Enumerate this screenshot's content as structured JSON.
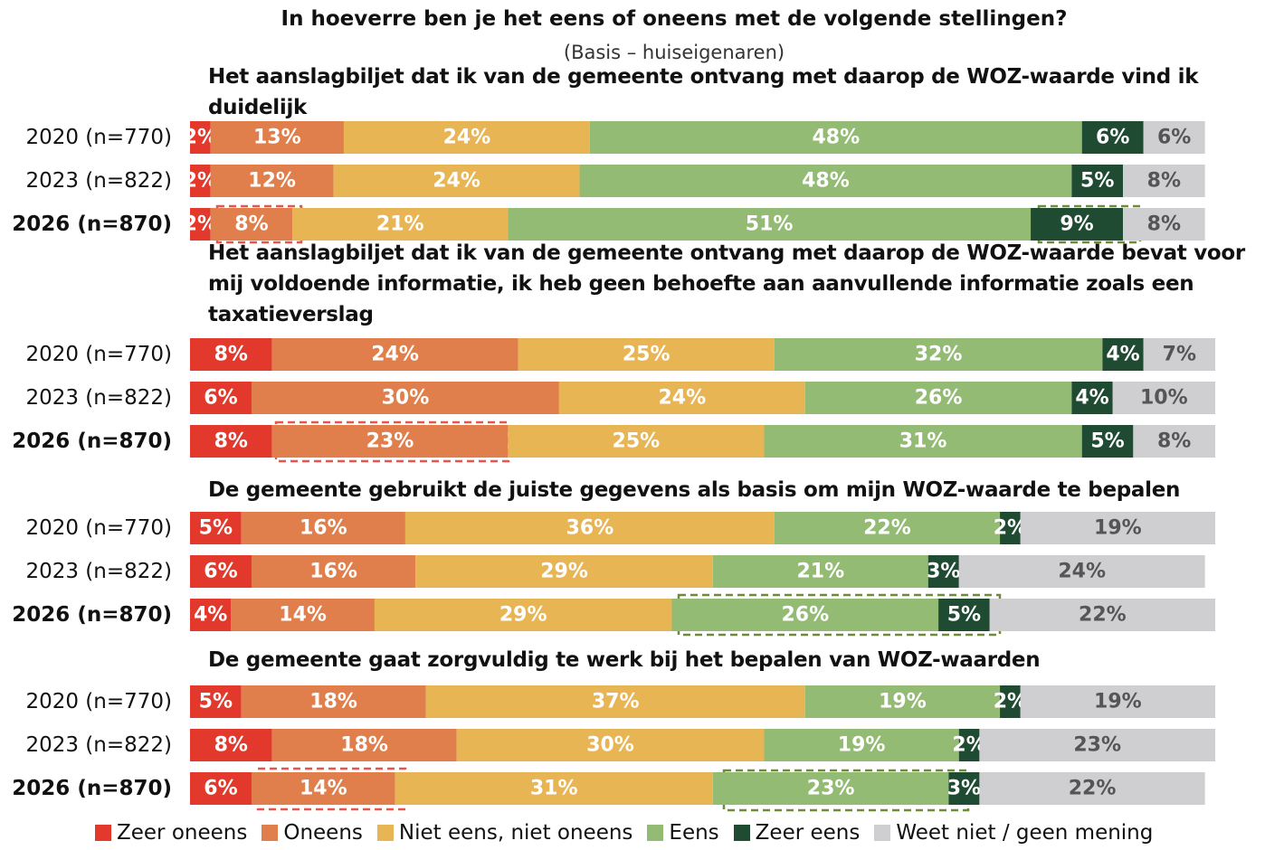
{
  "chart_data": {
    "type": "stacked-bar",
    "title": "In hoeverre ben je het eens of oneens met de volgende stellingen?",
    "subtitle": "(Basis – huiseigenaren)",
    "series": [
      {
        "name": "Zeer oneens",
        "color": "#e3392c"
      },
      {
        "name": "Oneens",
        "color": "#e07f4b"
      },
      {
        "name": "Niet eens, niet oneens",
        "color": "#e8b554"
      },
      {
        "name": "Eens",
        "color": "#93bb74"
      },
      {
        "name": "Zeer eens",
        "color": "#1f4b32"
      },
      {
        "name": "Weet niet / geen mening",
        "color": "#cfcfd2"
      }
    ],
    "panels": [
      {
        "title": "Het aanslagbiljet dat ik van de gemeente ontvang met daarop de WOZ-waarde vind ik duidelijk",
        "categories": [
          "2020 (n=770)",
          "2023 (n=822)",
          "2026 (n=870)"
        ],
        "series": [
          {
            "values": [
              2,
              2,
              2
            ],
            "value_labels": [
              "2%",
              "2%",
              "2%"
            ]
          },
          {
            "values": [
              13,
              12,
              8
            ],
            "value_labels": [
              "13%",
              "12%",
              "8%"
            ]
          },
          {
            "values": [
              24,
              24,
              21
            ],
            "value_labels": [
              "24%",
              "24%",
              "21%"
            ]
          },
          {
            "values": [
              48,
              48,
              51
            ],
            "value_labels": [
              "48%",
              "48%",
              "51%"
            ]
          },
          {
            "values": [
              6,
              5,
              9
            ],
            "value_labels": [
              "6%",
              "5%",
              "9%"
            ]
          },
          {
            "values": [
              6,
              8,
              8
            ],
            "value_labels": [
              "6%",
              "8%",
              "8%"
            ]
          }
        ]
      },
      {
        "title": "Het aanslagbiljet dat ik van de gemeente ontvang met daarop de WOZ-waarde bevat voor mij voldoende informatie, ik heb geen behoefte aan aanvullende informatie zoals een taxatieverslag",
        "categories": [
          "2020 (n=770)",
          "2023 (n=822)",
          "2026 (n=870)"
        ],
        "series": [
          {
            "values": [
              8,
              6,
              8
            ],
            "value_labels": [
              "8%",
              "6%",
              "8%"
            ]
          },
          {
            "values": [
              24,
              30,
              23
            ],
            "value_labels": [
              "24%",
              "30%",
              "23%"
            ]
          },
          {
            "values": [
              25,
              24,
              25
            ],
            "value_labels": [
              "25%",
              "24%",
              "25%"
            ]
          },
          {
            "values": [
              32,
              26,
              31
            ],
            "value_labels": [
              "32%",
              "26%",
              "31%"
            ]
          },
          {
            "values": [
              4,
              4,
              5
            ],
            "value_labels": [
              "4%",
              "4%",
              "5%"
            ]
          },
          {
            "values": [
              7,
              10,
              8
            ],
            "value_labels": [
              "7%",
              "10%",
              "8%"
            ]
          }
        ]
      },
      {
        "title": "De gemeente gebruikt de juiste gegevens als basis om mijn WOZ-waarde te bepalen",
        "categories": [
          "2020 (n=770)",
          "2023 (n=822)",
          "2026 (n=870)"
        ],
        "series": [
          {
            "values": [
              5,
              6,
              4
            ],
            "value_labels": [
              "5%",
              "6%",
              "4%"
            ]
          },
          {
            "values": [
              16,
              16,
              14
            ],
            "value_labels": [
              "16%",
              "16%",
              "14%"
            ]
          },
          {
            "values": [
              36,
              29,
              29
            ],
            "value_labels": [
              "36%",
              "29%",
              "29%"
            ]
          },
          {
            "values": [
              22,
              21,
              26
            ],
            "value_labels": [
              "22%",
              "21%",
              "26%"
            ]
          },
          {
            "values": [
              2,
              3,
              5
            ],
            "value_labels": [
              "2%",
              "3%",
              "5%"
            ]
          },
          {
            "values": [
              19,
              24,
              22
            ],
            "value_labels": [
              "19%",
              "24%",
              "22%"
            ]
          }
        ]
      },
      {
        "title": "De gemeente gaat zorgvuldig te werk bij het bepalen van WOZ-waarden",
        "categories": [
          "2020 (n=770)",
          "2023 (n=822)",
          "2026 (n=870)"
        ],
        "series": [
          {
            "values": [
              5,
              8,
              6
            ],
            "value_labels": [
              "5%",
              "8%",
              "6%"
            ]
          },
          {
            "values": [
              18,
              18,
              14
            ],
            "value_labels": [
              "18%",
              "18%",
              "14%"
            ]
          },
          {
            "values": [
              37,
              30,
              31
            ],
            "value_labels": [
              "37%",
              "30%",
              "31%"
            ]
          },
          {
            "values": [
              19,
              19,
              23
            ],
            "value_labels": [
              "19%",
              "19%",
              "23%"
            ]
          },
          {
            "values": [
              2,
              2,
              3
            ],
            "value_labels": [
              "2%",
              "2%",
              "3%"
            ]
          },
          {
            "values": [
              19,
              23,
              22
            ],
            "value_labels": [
              "19%",
              "23%",
              "22%"
            ]
          }
        ]
      }
    ]
  }
}
